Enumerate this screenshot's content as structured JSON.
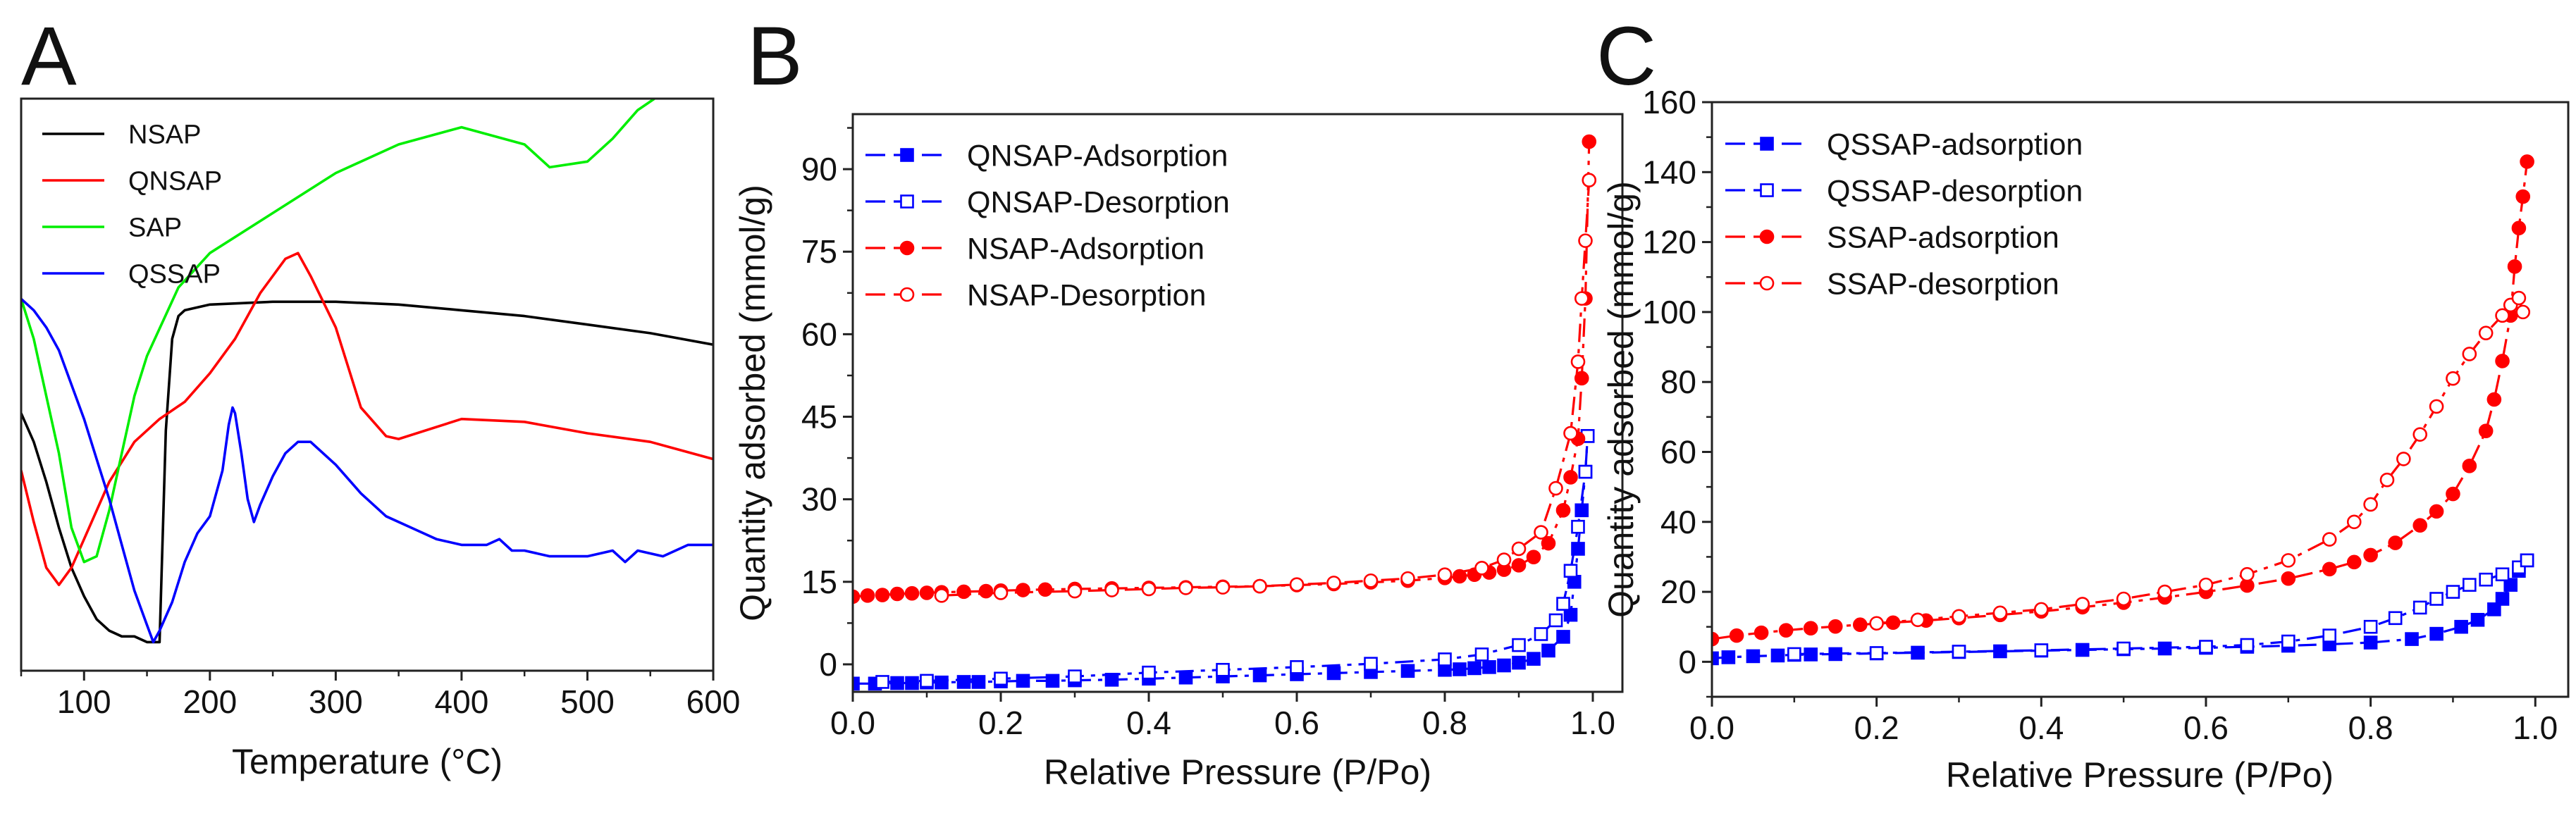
{
  "chart_data": [
    {
      "panel": "A",
      "type": "line",
      "xlabel": "Temperature (°C)",
      "ylabel": "",
      "xlim": [
        50,
        600
      ],
      "ylim": [
        0,
        100
      ],
      "x_ticks": [
        100,
        200,
        300,
        400,
        500,
        600
      ],
      "y_ticks_shown": false,
      "legend_position": "top-left",
      "series": [
        {
          "name": "NSAP",
          "color": "#000000",
          "x": [
            50,
            60,
            70,
            80,
            90,
            100,
            110,
            120,
            130,
            140,
            150,
            155,
            160,
            162,
            165,
            170,
            175,
            180,
            200,
            250,
            300,
            350,
            400,
            450,
            500,
            550,
            600
          ],
          "y": [
            45,
            40,
            33,
            25,
            18,
            13,
            9,
            7,
            6,
            6,
            5,
            5,
            5,
            20,
            42,
            58,
            62,
            63,
            64,
            64.5,
            64.5,
            64,
            63,
            62,
            60.5,
            59,
            57
          ]
        },
        {
          "name": "QNSAP",
          "color": "#ff0000",
          "x": [
            50,
            60,
            70,
            80,
            90,
            100,
            120,
            140,
            160,
            180,
            200,
            220,
            240,
            260,
            270,
            280,
            300,
            320,
            340,
            350,
            400,
            450,
            500,
            550,
            600
          ],
          "y": [
            35,
            26,
            18,
            15,
            18,
            23,
            33,
            40,
            44,
            47,
            52,
            58,
            66,
            72,
            73,
            69,
            60,
            46,
            41,
            40.5,
            44,
            43.5,
            41.5,
            40,
            37
          ]
        },
        {
          "name": "SAP",
          "color": "#00ee00",
          "x": [
            50,
            60,
            70,
            80,
            90,
            100,
            110,
            120,
            130,
            140,
            150,
            175,
            200,
            250,
            300,
            350,
            400,
            450,
            470,
            500,
            520,
            540,
            560,
            580,
            600
          ],
          "y": [
            65,
            58,
            48,
            38,
            25,
            19,
            20,
            28,
            38,
            48,
            55,
            67,
            73,
            80,
            87,
            92,
            95,
            92,
            88,
            89,
            93,
            98,
            101,
            101,
            101
          ]
        },
        {
          "name": "QSSAP",
          "color": "#0000ff",
          "x": [
            50,
            60,
            70,
            80,
            90,
            100,
            110,
            120,
            130,
            140,
            150,
            155,
            160,
            170,
            180,
            190,
            200,
            210,
            215,
            218,
            220,
            225,
            230,
            235,
            240,
            250,
            260,
            270,
            280,
            300,
            320,
            340,
            360,
            380,
            400,
            420,
            430,
            440,
            450,
            470,
            500,
            520,
            530,
            540,
            560,
            580,
            600
          ],
          "y": [
            65,
            63,
            60,
            56,
            50,
            44,
            37,
            30,
            22,
            14,
            8,
            5,
            7,
            12,
            19,
            24,
            27,
            35,
            43,
            46,
            45,
            38,
            30,
            26,
            29,
            34,
            38,
            40,
            40,
            36,
            31,
            27,
            25,
            23,
            22,
            22,
            23,
            21,
            21,
            20,
            20,
            21,
            19,
            21,
            20,
            22,
            22
          ]
        }
      ]
    },
    {
      "panel": "B",
      "type": "line",
      "xlabel": "Relative Pressure (P/Po)",
      "ylabel": "Quantity adsorbed (mmol/g)",
      "xlim": [
        0.0,
        1.04
      ],
      "ylim": [
        -5,
        100
      ],
      "x_ticks": [
        "0.0",
        "0.2",
        "0.4",
        "0.6",
        "0.8",
        "1.0"
      ],
      "y_ticks": [
        "0",
        "15",
        "30",
        "45",
        "60",
        "75",
        "90"
      ],
      "legend_position": "top-left",
      "series": [
        {
          "name": "QNSAP-Adsorption",
          "color": "#0000ff",
          "marker": "square-filled",
          "x": [
            0.0,
            0.03,
            0.06,
            0.08,
            0.1,
            0.12,
            0.15,
            0.17,
            0.2,
            0.23,
            0.27,
            0.3,
            0.35,
            0.4,
            0.45,
            0.5,
            0.55,
            0.6,
            0.65,
            0.7,
            0.75,
            0.8,
            0.82,
            0.84,
            0.86,
            0.88,
            0.9,
            0.92,
            0.94,
            0.96,
            0.97,
            0.975,
            0.98,
            0.985,
            0.99,
            0.993
          ],
          "y": [
            -3.5,
            -3.5,
            -3.4,
            -3.4,
            -3.3,
            -3.3,
            -3.2,
            -3.2,
            -3.1,
            -3.0,
            -3.0,
            -2.9,
            -2.8,
            -2.6,
            -2.4,
            -2.2,
            -2.0,
            -1.8,
            -1.6,
            -1.4,
            -1.2,
            -1.0,
            -0.9,
            -0.7,
            -0.5,
            -0.2,
            0.3,
            1.0,
            2.5,
            5,
            9,
            15,
            21,
            28,
            35,
            41.5
          ]
        },
        {
          "name": "QNSAP-Desorption",
          "color": "#0000ff",
          "marker": "square-open",
          "x": [
            0.04,
            0.1,
            0.2,
            0.3,
            0.4,
            0.5,
            0.6,
            0.7,
            0.8,
            0.85,
            0.9,
            0.93,
            0.95,
            0.96,
            0.97,
            0.98,
            0.99,
            0.993
          ],
          "y": [
            -3.2,
            -3.0,
            -2.6,
            -2.2,
            -1.5,
            -1.0,
            -0.5,
            0.1,
            0.9,
            1.8,
            3.5,
            5.5,
            8,
            11,
            17,
            25,
            35,
            41.5
          ]
        },
        {
          "name": "NSAP-Adsorption",
          "color": "#ff0000",
          "marker": "circle-filled",
          "x": [
            0.0,
            0.02,
            0.04,
            0.06,
            0.08,
            0.1,
            0.12,
            0.15,
            0.18,
            0.2,
            0.23,
            0.26,
            0.3,
            0.35,
            0.4,
            0.45,
            0.5,
            0.55,
            0.6,
            0.65,
            0.7,
            0.75,
            0.8,
            0.82,
            0.84,
            0.86,
            0.88,
            0.9,
            0.92,
            0.94,
            0.96,
            0.97,
            0.98,
            0.985,
            0.99,
            0.995
          ],
          "y": [
            12.3,
            12.5,
            12.6,
            12.8,
            12.9,
            13.0,
            13.1,
            13.2,
            13.3,
            13.4,
            13.5,
            13.6,
            13.7,
            13.8,
            13.9,
            14.0,
            14.1,
            14.2,
            14.4,
            14.6,
            14.9,
            15.2,
            15.7,
            16.0,
            16.3,
            16.7,
            17.2,
            18.0,
            19.5,
            22,
            28,
            34,
            41,
            52,
            66.5,
            95
          ]
        },
        {
          "name": "NSAP-Desorption",
          "color": "#ff0000",
          "marker": "circle-open",
          "x": [
            0.12,
            0.2,
            0.3,
            0.35,
            0.4,
            0.45,
            0.5,
            0.55,
            0.6,
            0.65,
            0.7,
            0.75,
            0.8,
            0.85,
            0.88,
            0.9,
            0.93,
            0.95,
            0.97,
            0.98,
            0.985,
            0.99,
            0.995
          ],
          "y": [
            12.5,
            13.0,
            13.3,
            13.5,
            13.7,
            13.9,
            14.0,
            14.2,
            14.5,
            14.8,
            15.2,
            15.6,
            16.3,
            17.5,
            19,
            21,
            24,
            32,
            42,
            55,
            66.5,
            77,
            88
          ]
        }
      ]
    },
    {
      "panel": "C",
      "type": "line",
      "xlabel": "Relative Pressure (P/Po)",
      "ylabel": "Quantity adsorbed (mmol/g)",
      "xlim": [
        0.0,
        1.04
      ],
      "ylim": [
        -10,
        160
      ],
      "x_ticks": [
        "0.0",
        "0.2",
        "0.4",
        "0.6",
        "0.8",
        "1.0"
      ],
      "y_ticks": [
        "0",
        "20",
        "40",
        "60",
        "80",
        "100",
        "120",
        "140",
        "160"
      ],
      "legend_position": "top-left",
      "series": [
        {
          "name": "QSSAP-adsorption",
          "color": "#0000ff",
          "marker": "square-filled",
          "x": [
            0.0,
            0.02,
            0.05,
            0.08,
            0.1,
            0.12,
            0.15,
            0.2,
            0.25,
            0.3,
            0.35,
            0.4,
            0.45,
            0.5,
            0.55,
            0.6,
            0.65,
            0.7,
            0.75,
            0.8,
            0.85,
            0.88,
            0.91,
            0.93,
            0.95,
            0.96,
            0.97,
            0.98,
            0.99
          ],
          "y": [
            1,
            1.3,
            1.6,
            1.8,
            2.0,
            2.1,
            2.2,
            2.4,
            2.6,
            2.8,
            3.0,
            3.2,
            3.4,
            3.6,
            3.8,
            4.0,
            4.3,
            4.6,
            5.0,
            5.5,
            6.5,
            8,
            10,
            12,
            15,
            18,
            22,
            26,
            29
          ]
        },
        {
          "name": "QSSAP-desorption",
          "color": "#0000ff",
          "marker": "square-open",
          "x": [
            0.1,
            0.2,
            0.3,
            0.4,
            0.5,
            0.6,
            0.65,
            0.7,
            0.75,
            0.8,
            0.83,
            0.86,
            0.88,
            0.9,
            0.92,
            0.94,
            0.96,
            0.98,
            0.99
          ],
          "y": [
            2.2,
            2.5,
            2.9,
            3.3,
            3.8,
            4.3,
            4.8,
            5.8,
            7.5,
            10,
            12.5,
            15.5,
            18,
            20,
            22,
            23.5,
            25,
            27,
            29
          ]
        },
        {
          "name": "SSAP-adsorption",
          "color": "#ff0000",
          "marker": "circle-filled",
          "x": [
            0.0,
            0.03,
            0.06,
            0.09,
            0.12,
            0.15,
            0.18,
            0.22,
            0.26,
            0.3,
            0.35,
            0.4,
            0.45,
            0.5,
            0.55,
            0.6,
            0.65,
            0.7,
            0.75,
            0.78,
            0.8,
            0.83,
            0.86,
            0.88,
            0.9,
            0.92,
            0.94,
            0.95,
            0.96,
            0.97,
            0.975,
            0.98,
            0.985,
            0.99
          ],
          "y": [
            6.5,
            7.5,
            8.3,
            9.0,
            9.6,
            10.1,
            10.6,
            11.2,
            11.8,
            12.5,
            13.4,
            14.4,
            15.6,
            16.9,
            18.4,
            20,
            21.8,
            23.8,
            26.5,
            28.5,
            30.5,
            34,
            39,
            43,
            48,
            56,
            66,
            75,
            86,
            99,
            113,
            124,
            133,
            143
          ]
        },
        {
          "name": "SSAP-desorption",
          "color": "#ff0000",
          "marker": "circle-open",
          "x": [
            0.2,
            0.25,
            0.3,
            0.35,
            0.4,
            0.45,
            0.5,
            0.55,
            0.6,
            0.65,
            0.7,
            0.75,
            0.78,
            0.8,
            0.82,
            0.84,
            0.86,
            0.88,
            0.9,
            0.92,
            0.94,
            0.96,
            0.97,
            0.98,
            0.985
          ],
          "y": [
            11,
            12,
            13,
            14,
            15,
            16.5,
            18,
            20,
            22,
            25,
            29,
            35,
            40,
            45,
            52,
            58,
            65,
            73,
            81,
            88,
            94,
            99,
            102,
            104,
            100
          ]
        }
      ]
    }
  ]
}
